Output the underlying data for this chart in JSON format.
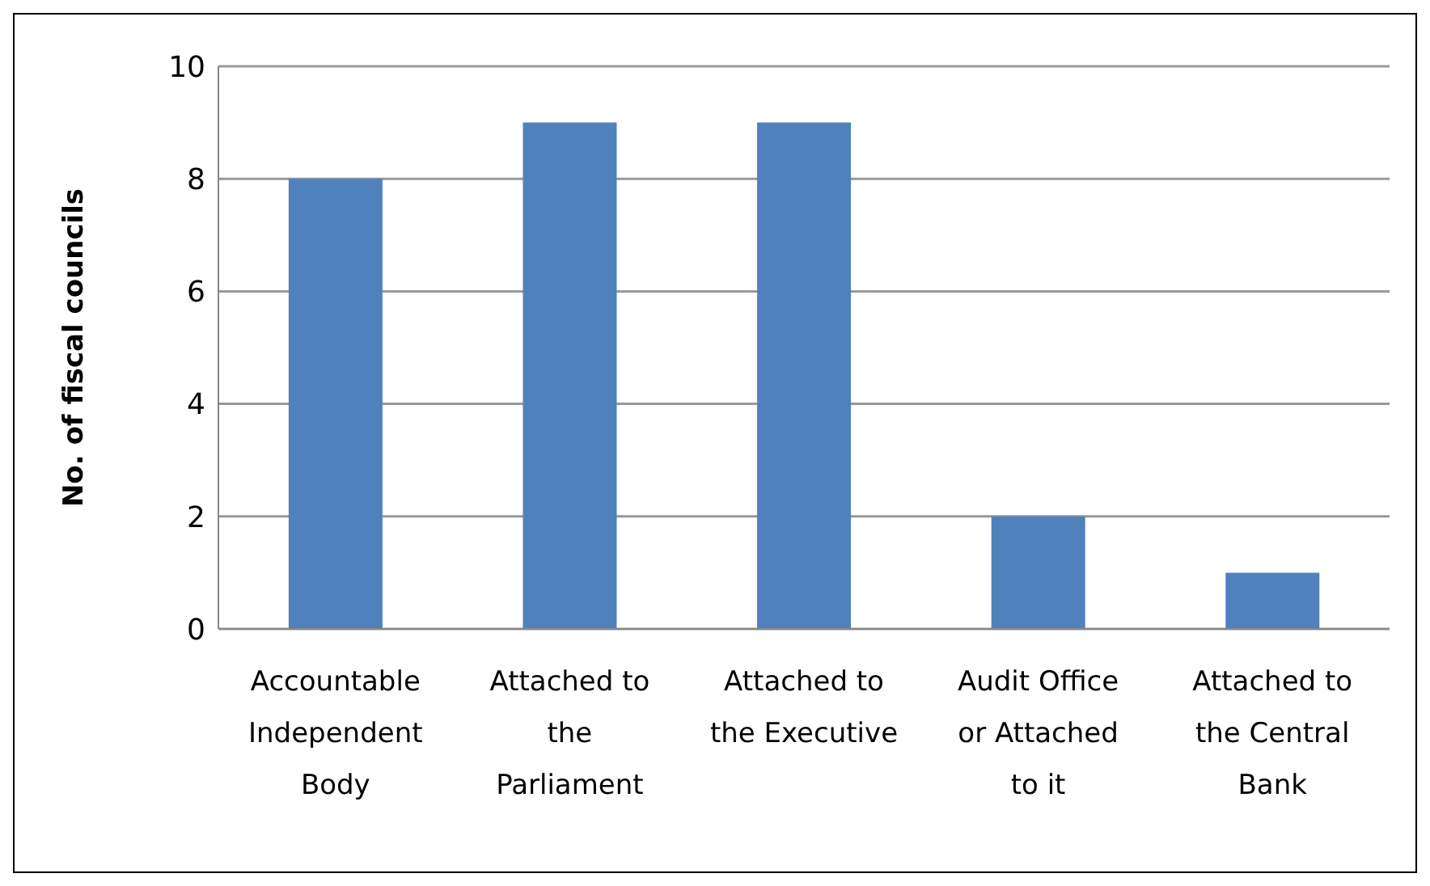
{
  "chart_data": {
    "type": "bar",
    "ylabel": "No. of fiscal councils",
    "categories": [
      "Accountable Independent Body",
      "Attached to the Parliament",
      "Attached to the Executive",
      "Audit Office or Attached to it",
      "Attached to the Central Bank"
    ],
    "values": [
      8,
      9,
      9,
      2,
      1
    ],
    "color": "#4f81bd",
    "ylim": [
      0,
      10
    ],
    "yticks": [
      0,
      2,
      4,
      6,
      8,
      10
    ],
    "grid": "y",
    "legend": false
  }
}
